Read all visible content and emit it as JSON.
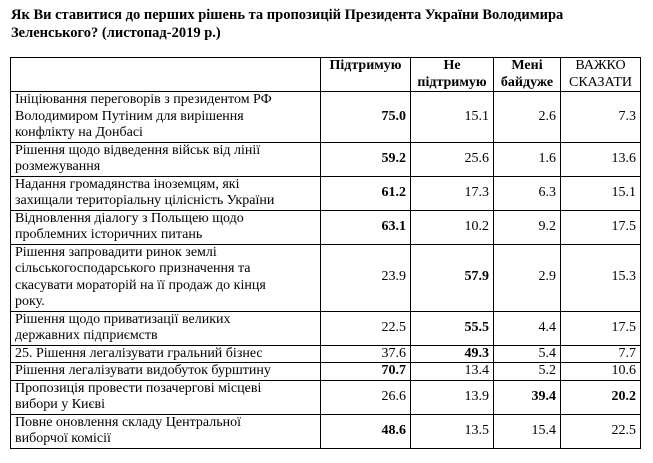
{
  "title": "Як Ви ставитися до перших рішень та пропозицій Президента України Володимира\nЗеленського?  (листопад-2019 р.)",
  "headers": [
    "",
    "Підтримую",
    "Не\nпідтримую",
    "Мені\nбайдуже",
    "ВАЖКО\nСКАЗАТИ"
  ],
  "rows": [
    {
      "label": "Ініціювання переговорів з президентом РФ\nВолодимиром Путіним для вирішення\nконфлікту на Донбасі",
      "values": [
        "75.0",
        "15.1",
        "2.6",
        "7.3"
      ],
      "bold": [
        true,
        false,
        false,
        false
      ]
    },
    {
      "label": "Рішення щодо  відведення військ від лінії\nрозмежування",
      "values": [
        "59.2",
        "25.6",
        "1.6",
        "13.6"
      ],
      "bold": [
        true,
        false,
        false,
        false
      ]
    },
    {
      "label": "Надання громадянства іноземцям, які\nзахищали територіальну цілісність України",
      "values": [
        "61.2",
        "17.3",
        "6.3",
        "15.1"
      ],
      "bold": [
        true,
        false,
        false,
        false
      ]
    },
    {
      "label": "Відновлення діалогу з Польщею щодо\nпроблемних історичних питань",
      "values": [
        "63.1",
        "10.2",
        "9.2",
        "17.5"
      ],
      "bold": [
        true,
        false,
        false,
        false
      ]
    },
    {
      "label": " Рішення запровадити ринок землі\nсільськогосподарського призначення та\nскасувати мораторій на її продаж до кінця\nроку.",
      "values": [
        "23.9",
        "57.9",
        "2.9",
        "15.3"
      ],
      "bold": [
        false,
        true,
        false,
        false
      ]
    },
    {
      "label": "Рішення щодо  приватизації великих\nдержавних підприємств",
      "values": [
        "22.5",
        "55.5",
        "4.4",
        "17.5"
      ],
      "bold": [
        false,
        true,
        false,
        false
      ]
    },
    {
      "label": "25. Рішення легалізувати гральний бізнес",
      "values": [
        "37.6",
        "49.3",
        "5.4",
        "7.7"
      ],
      "bold": [
        false,
        true,
        false,
        false
      ]
    },
    {
      "label": "Рішення легалізувати видобуток бурштину",
      "values": [
        "70.7",
        "13.4",
        "5.2",
        "10.6"
      ],
      "bold": [
        true,
        false,
        false,
        false
      ]
    },
    {
      "label": "Пропозиція провести позачергові місцеві\nвибори у Києві",
      "values": [
        "26.6",
        "13.9",
        "39.4",
        "20.2"
      ],
      "bold": [
        false,
        false,
        true,
        true
      ]
    },
    {
      "label": "Повне оновлення  складу Центральної\nвиборчої комісії",
      "values": [
        "48.6",
        "13.5",
        "15.4",
        "22.5"
      ],
      "bold": [
        true,
        false,
        false,
        false
      ]
    }
  ]
}
